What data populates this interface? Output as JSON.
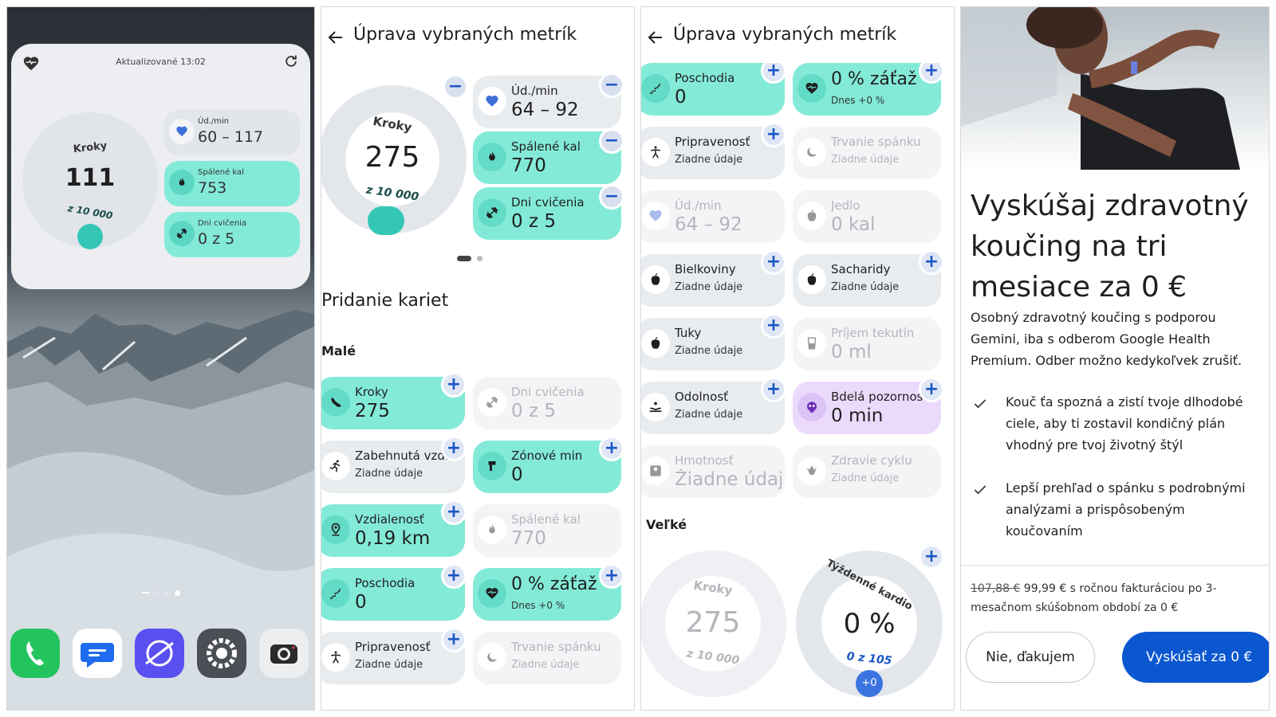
{
  "home": {
    "updated": "Aktualizované 13:02",
    "ring": {
      "label": "Kroky",
      "value": "111",
      "goal": "z 10 000"
    },
    "cards": [
      {
        "title": "Úd./min",
        "value": "60 – 117"
      },
      {
        "title": "Spálené kal",
        "value": "753"
      },
      {
        "title": "Dni cvičenia",
        "value": "0 z 5"
      }
    ],
    "dock": [
      "phone-app-icon",
      "messages-app-icon",
      "browser-app-icon",
      "settings-app-icon",
      "camera-app-icon"
    ]
  },
  "edit": {
    "title": "Úprava vybraných metrík",
    "ring": {
      "label": "Kroky",
      "value": "275",
      "goal": "z 10 000"
    },
    "selected": [
      {
        "title": "Úd./min",
        "value": "64 – 92"
      },
      {
        "title": "Spálené kal",
        "value": "770"
      },
      {
        "title": "Dni cvičenia",
        "value": "0 z 5"
      }
    ],
    "add_title": "Pridanie kariet",
    "small": "Malé",
    "large": "Veľké",
    "cards": {
      "kroky": {
        "title": "Kroky",
        "value": "275"
      },
      "dni": {
        "title": "Dni cvičenia",
        "value": "0 z 5"
      },
      "zabehnuta": {
        "title": "Zabehnutá vzd.",
        "sub": "Žiadne údaje"
      },
      "zonove": {
        "title": "Zónové min",
        "value": "0"
      },
      "vzdialenost": {
        "title": "Vzdialenosť",
        "value": "0,19 km"
      },
      "spalene": {
        "title": "Spálené kal",
        "value": "770"
      },
      "poschodia": {
        "title": "Poschodia",
        "value": "0"
      },
      "zataz": {
        "title": "0 % záťaž",
        "sub": "Dnes +0 %"
      },
      "pripravenost": {
        "title": "Pripravenosť",
        "sub": "Žiadne údaje"
      },
      "spanok": {
        "title": "Trvanie spánku",
        "sub": "Žiadne údaje"
      },
      "udmin": {
        "title": "Úd./min",
        "value": "64 – 92"
      },
      "jedlo": {
        "title": "Jedlo",
        "value": "0 kal"
      },
      "bielkoviny": {
        "title": "Bielkoviny",
        "sub": "Žiadne údaje"
      },
      "sacharidy": {
        "title": "Sacharidy",
        "sub": "Žiadne údaje"
      },
      "tuky": {
        "title": "Tuky",
        "sub": "Žiadne údaje"
      },
      "tekutiny": {
        "title": "Príjem tekutín",
        "value": "0 ml"
      },
      "odolnost": {
        "title": "Odolnosť",
        "sub": "Žiadne údaje"
      },
      "bdela": {
        "title": "Bdelá pozornosť",
        "value": "0 min"
      },
      "hmotnost": {
        "title": "Hmotnosť",
        "value": "Žiadne údaje"
      },
      "cyklus": {
        "title": "Zdravie cyklu",
        "sub": "Žiadne údaje"
      }
    },
    "big_steps": {
      "label": "Kroky",
      "value": "275",
      "goal": "z 10 000"
    },
    "big_cardio": {
      "label": "Týždenné kardio",
      "value": "0 %",
      "goal": "0 z 105",
      "delta": "+0"
    },
    "badges": {
      "plus": "+",
      "minus": "−"
    }
  },
  "promo": {
    "headline": "Vyskúšaj zdravotný koučing na tri mesiace za 0 €",
    "description": "Osobný zdravotný koučing s podporou Gemini, iba s odberom Google Health Premium. Odber možno kedykoľvek zrušiť.",
    "bullets": [
      "Kouč ťa spozná a zistí tvoje dlhodobé ciele, aby ti zostavil kondičný plán vhodný pre tvoj životný štýl",
      "Lepší prehľad o spánku s podrobnými analýzami a prispôsobeným koučovaním"
    ],
    "old_price": "107,88 €",
    "price_text": "99,99 € s ročnou fakturáciou po 3-mesačnom skúšobnom období za 0 €",
    "decline": "Nie, ďakujem",
    "accept": "Vyskúšať za 0 €"
  },
  "colors": {
    "accent": "#0b57d0",
    "teal": "#83ead8",
    "lilac": "#ecdafc",
    "chip": "#e9ecef"
  }
}
